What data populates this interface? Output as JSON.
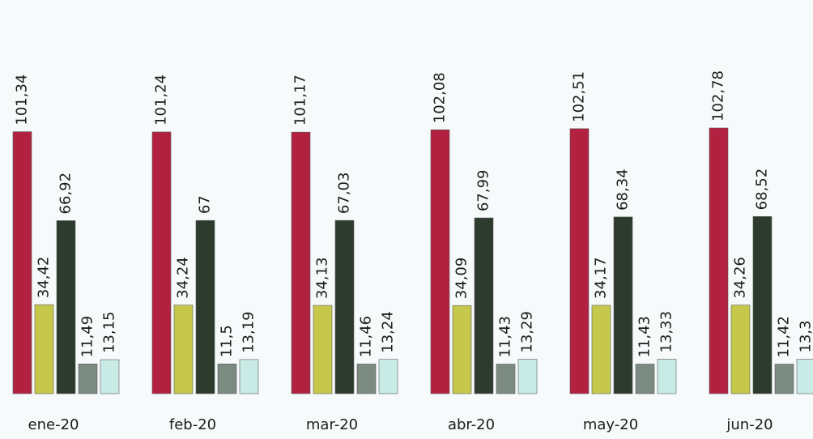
{
  "chart_data": {
    "type": "bar",
    "categories": [
      "ene-20",
      "feb-20",
      "mar-20",
      "abr-20",
      "may-20",
      "jun-20"
    ],
    "series": [
      {
        "color": "#b32141",
        "values": [
          101.34,
          101.24,
          101.17,
          102.08,
          102.51,
          102.78
        ],
        "value_labels": [
          "101,34",
          "101,24",
          "101,17",
          "102,08",
          "102,51",
          "102,78"
        ]
      },
      {
        "color": "#c6c84b",
        "values": [
          34.42,
          34.24,
          34.13,
          34.09,
          34.17,
          34.26
        ],
        "value_labels": [
          "34,42",
          "34,24",
          "34,13",
          "34,09",
          "34,17",
          "34,26"
        ]
      },
      {
        "color": "#2c3b2e",
        "values": [
          66.92,
          67,
          67.03,
          67.99,
          68.34,
          68.52
        ],
        "value_labels": [
          "66,92",
          "67",
          "67,03",
          "67,99",
          "68,34",
          "68,52"
        ]
      },
      {
        "color": "#7b8b82",
        "values": [
          11.49,
          11.5,
          11.46,
          11.43,
          11.43,
          11.42
        ],
        "value_labels": [
          "11,49",
          "11,5",
          "11,46",
          "11,43",
          "11,43",
          "11,42"
        ]
      },
      {
        "color": "#c8ebe5",
        "values": [
          13.15,
          13.19,
          13.24,
          13.29,
          13.33,
          13.3
        ],
        "value_labels": [
          "13,15",
          "13,19",
          "13,24",
          "13,29",
          "13,33",
          "13,3"
        ]
      }
    ]
  }
}
